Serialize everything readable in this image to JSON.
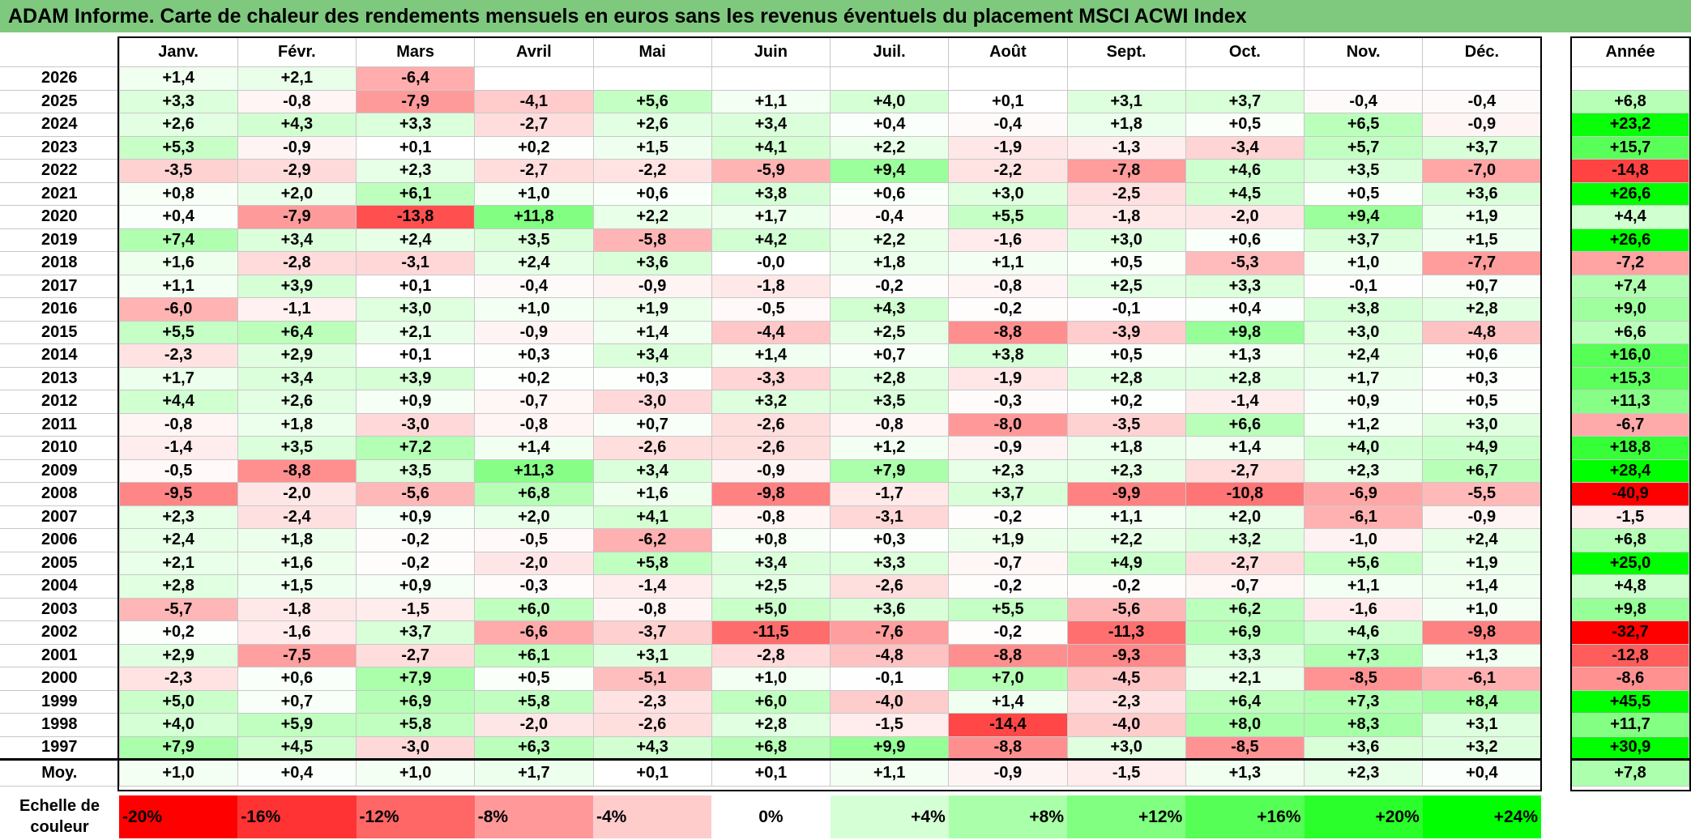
{
  "title": "ADAM Informe. Carte de chaleur des rendements mensuels en euros sans les revenus éventuels du placement MSCI ACWI Index",
  "chart_data": {
    "type": "heatmap",
    "months": [
      "Janv.",
      "Févr.",
      "Mars",
      "Avril",
      "Mai",
      "Juin",
      "Juil.",
      "Août",
      "Sept.",
      "Oct.",
      "Nov.",
      "Déc."
    ],
    "annual_header": "Année",
    "rows": [
      {
        "year": "2026",
        "m": [
          "+1,4",
          "+2,1",
          "-6,4",
          "",
          "",
          "",
          "",
          "",
          "",
          "",
          "",
          ""
        ],
        "annual": ""
      },
      {
        "year": "2025",
        "m": [
          "+3,3",
          "-0,8",
          "-7,9",
          "-4,1",
          "+5,6",
          "+1,1",
          "+4,0",
          "+0,1",
          "+3,1",
          "+3,7",
          "-0,4",
          "-0,4"
        ],
        "annual": "+6,8"
      },
      {
        "year": "2024",
        "m": [
          "+2,6",
          "+4,3",
          "+3,3",
          "-2,7",
          "+2,6",
          "+3,4",
          "+0,4",
          "-0,4",
          "+1,8",
          "+0,5",
          "+6,5",
          "-0,9"
        ],
        "annual": "+23,2"
      },
      {
        "year": "2023",
        "m": [
          "+5,3",
          "-0,9",
          "+0,1",
          "+0,2",
          "+1,5",
          "+4,1",
          "+2,2",
          "-1,9",
          "-1,3",
          "-3,4",
          "+5,7",
          "+3,7"
        ],
        "annual": "+15,7"
      },
      {
        "year": "2022",
        "m": [
          "-3,5",
          "-2,9",
          "+2,3",
          "-2,7",
          "-2,2",
          "-5,9",
          "+9,4",
          "-2,2",
          "-7,8",
          "+4,6",
          "+3,5",
          "-7,0"
        ],
        "annual": "-14,8"
      },
      {
        "year": "2021",
        "m": [
          "+0,8",
          "+2,0",
          "+6,1",
          "+1,0",
          "+0,6",
          "+3,8",
          "+0,6",
          "+3,0",
          "-2,5",
          "+4,5",
          "+0,5",
          "+3,6"
        ],
        "annual": "+26,6"
      },
      {
        "year": "2020",
        "m": [
          "+0,4",
          "-7,9",
          "-13,8",
          "+11,8",
          "+2,2",
          "+1,7",
          "-0,4",
          "+5,5",
          "-1,8",
          "-2,0",
          "+9,4",
          "+1,9"
        ],
        "annual": "+4,4"
      },
      {
        "year": "2019",
        "m": [
          "+7,4",
          "+3,4",
          "+2,4",
          "+3,5",
          "-5,8",
          "+4,2",
          "+2,2",
          "-1,6",
          "+3,0",
          "+0,6",
          "+3,7",
          "+1,5"
        ],
        "annual": "+26,6"
      },
      {
        "year": "2018",
        "m": [
          "+1,6",
          "-2,8",
          "-3,1",
          "+2,4",
          "+3,6",
          "-0,0",
          "+1,8",
          "+1,1",
          "+0,5",
          "-5,3",
          "+1,0",
          "-7,7"
        ],
        "annual": "-7,2"
      },
      {
        "year": "2017",
        "m": [
          "+1,1",
          "+3,9",
          "+0,1",
          "-0,4",
          "-0,9",
          "-1,8",
          "-0,2",
          "-0,8",
          "+2,5",
          "+3,3",
          "-0,1",
          "+0,7"
        ],
        "annual": "+7,4"
      },
      {
        "year": "2016",
        "m": [
          "-6,0",
          "-1,1",
          "+3,0",
          "+1,0",
          "+1,9",
          "-0,5",
          "+4,3",
          "-0,2",
          "-0,1",
          "+0,4",
          "+3,8",
          "+2,8"
        ],
        "annual": "+9,0"
      },
      {
        "year": "2015",
        "m": [
          "+5,5",
          "+6,4",
          "+2,1",
          "-0,9",
          "+1,4",
          "-4,4",
          "+2,5",
          "-8,8",
          "-3,9",
          "+9,8",
          "+3,0",
          "-4,8"
        ],
        "annual": "+6,6"
      },
      {
        "year": "2014",
        "m": [
          "-2,3",
          "+2,9",
          "+0,1",
          "+0,3",
          "+3,4",
          "+1,4",
          "+0,7",
          "+3,8",
          "+0,5",
          "+1,3",
          "+2,4",
          "+0,6"
        ],
        "annual": "+16,0"
      },
      {
        "year": "2013",
        "m": [
          "+1,7",
          "+3,4",
          "+3,9",
          "+0,2",
          "+0,3",
          "-3,3",
          "+2,8",
          "-1,9",
          "+2,8",
          "+2,8",
          "+1,7",
          "+0,3"
        ],
        "annual": "+15,3"
      },
      {
        "year": "2012",
        "m": [
          "+4,4",
          "+2,6",
          "+0,9",
          "-0,7",
          "-3,0",
          "+3,2",
          "+3,5",
          "-0,3",
          "+0,2",
          "-1,4",
          "+0,9",
          "+0,5"
        ],
        "annual": "+11,3"
      },
      {
        "year": "2011",
        "m": [
          "-0,8",
          "+1,8",
          "-3,0",
          "-0,8",
          "+0,7",
          "-2,6",
          "-0,8",
          "-8,0",
          "-3,5",
          "+6,6",
          "+1,2",
          "+3,0"
        ],
        "annual": "-6,7"
      },
      {
        "year": "2010",
        "m": [
          "-1,4",
          "+3,5",
          "+7,2",
          "+1,4",
          "-2,6",
          "-2,6",
          "+1,2",
          "-0,9",
          "+1,8",
          "+1,4",
          "+4,0",
          "+4,9"
        ],
        "annual": "+18,8"
      },
      {
        "year": "2009",
        "m": [
          "-0,5",
          "-8,8",
          "+3,5",
          "+11,3",
          "+3,4",
          "-0,9",
          "+7,9",
          "+2,3",
          "+2,3",
          "-2,7",
          "+2,3",
          "+6,7"
        ],
        "annual": "+28,4"
      },
      {
        "year": "2008",
        "m": [
          "-9,5",
          "-2,0",
          "-5,6",
          "+6,8",
          "+1,6",
          "-9,8",
          "-1,7",
          "+3,7",
          "-9,9",
          "-10,8",
          "-6,9",
          "-5,5"
        ],
        "annual": "-40,9"
      },
      {
        "year": "2007",
        "m": [
          "+2,3",
          "-2,4",
          "+0,9",
          "+2,0",
          "+4,1",
          "-0,8",
          "-3,1",
          "-0,2",
          "+1,1",
          "+2,0",
          "-6,1",
          "-0,9"
        ],
        "annual": "-1,5"
      },
      {
        "year": "2006",
        "m": [
          "+2,4",
          "+1,8",
          "-0,2",
          "-0,5",
          "-6,2",
          "+0,8",
          "+0,3",
          "+1,9",
          "+2,2",
          "+3,2",
          "-1,0",
          "+2,4"
        ],
        "annual": "+6,8"
      },
      {
        "year": "2005",
        "m": [
          "+2,1",
          "+1,6",
          "-0,2",
          "-2,0",
          "+5,8",
          "+3,4",
          "+3,3",
          "-0,7",
          "+4,9",
          "-2,7",
          "+5,6",
          "+1,9"
        ],
        "annual": "+25,0"
      },
      {
        "year": "2004",
        "m": [
          "+2,8",
          "+1,5",
          "+0,9",
          "-0,3",
          "-1,4",
          "+2,5",
          "-2,6",
          "-0,2",
          "-0,2",
          "-0,7",
          "+1,1",
          "+1,4"
        ],
        "annual": "+4,8"
      },
      {
        "year": "2003",
        "m": [
          "-5,7",
          "-1,8",
          "-1,5",
          "+6,0",
          "-0,8",
          "+5,0",
          "+3,6",
          "+5,5",
          "-5,6",
          "+6,2",
          "-1,6",
          "+1,0"
        ],
        "annual": "+9,8"
      },
      {
        "year": "2002",
        "m": [
          "+0,2",
          "-1,6",
          "+3,7",
          "-6,6",
          "-3,7",
          "-11,5",
          "-7,6",
          "-0,2",
          "-11,3",
          "+6,9",
          "+4,6",
          "-9,8"
        ],
        "annual": "-32,7"
      },
      {
        "year": "2001",
        "m": [
          "+2,9",
          "-7,5",
          "-2,7",
          "+6,1",
          "+3,1",
          "-2,8",
          "-4,8",
          "-8,8",
          "-9,3",
          "+3,3",
          "+7,3",
          "+1,3"
        ],
        "annual": "-12,8"
      },
      {
        "year": "2000",
        "m": [
          "-2,3",
          "+0,6",
          "+7,9",
          "+0,5",
          "-5,1",
          "+1,0",
          "-0,1",
          "+7,0",
          "-4,5",
          "+2,1",
          "-8,5",
          "-6,1"
        ],
        "annual": "-8,6"
      },
      {
        "year": "1999",
        "m": [
          "+5,0",
          "+0,7",
          "+6,9",
          "+5,8",
          "-2,3",
          "+6,0",
          "-4,0",
          "+1,4",
          "-2,3",
          "+6,4",
          "+7,3",
          "+8,4"
        ],
        "annual": "+45,5"
      },
      {
        "year": "1998",
        "m": [
          "+4,0",
          "+5,9",
          "+5,8",
          "-2,0",
          "-2,6",
          "+2,8",
          "-1,5",
          "-14,4",
          "-4,0",
          "+8,0",
          "+8,3",
          "+3,1"
        ],
        "annual": "+11,7"
      },
      {
        "year": "1997",
        "m": [
          "+7,9",
          "+4,5",
          "-3,0",
          "+6,3",
          "+4,3",
          "+6,8",
          "+9,9",
          "-8,8",
          "+3,0",
          "-8,5",
          "+3,6",
          "+3,2"
        ],
        "annual": "+30,9"
      }
    ],
    "average": {
      "label": "Moy.",
      "m": [
        "+1,0",
        "+0,4",
        "+1,0",
        "+1,7",
        "+0,1",
        "+0,1",
        "+1,1",
        "-0,9",
        "-1,5",
        "+1,3",
        "+2,3",
        "+0,4"
      ],
      "annual": "+7,8"
    },
    "scale_label": "Echelle de couleur",
    "scale": [
      "-20%",
      "-16%",
      "-12%",
      "-8%",
      "-4%",
      "0%",
      "+4%",
      "+8%",
      "+12%",
      "+16%",
      "+20%",
      "+24%"
    ],
    "colors": {
      "negative_max": "#ff0000",
      "neutral": "#ffffff",
      "positive_max": "#00ff00",
      "title_bg": "#7fc97f"
    }
  }
}
